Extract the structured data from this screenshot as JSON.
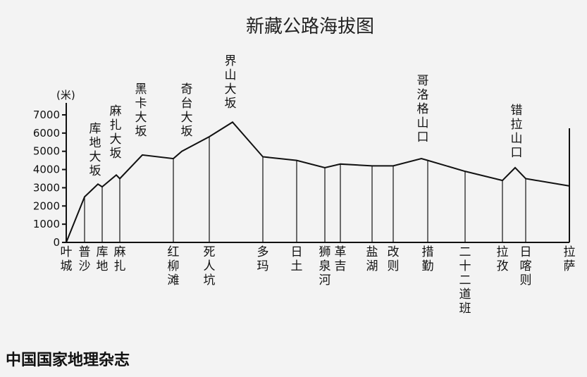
{
  "chart_data": {
    "type": "line",
    "title": "新藏公路海拔图",
    "source": "中国国家地理杂志",
    "y_unit": "(米)",
    "ylim": [
      0,
      7000
    ],
    "yticks": [
      0,
      1000,
      2000,
      3000,
      4000,
      5000,
      6000,
      7000
    ],
    "grid": false,
    "places": [
      {
        "name": "叶城",
        "elev": 0
      },
      {
        "name": "普沙",
        "elev": 2500
      },
      {
        "name": "库地",
        "elev": 3050
      },
      {
        "name": "麻扎",
        "elev": 3500
      },
      {
        "name": "红柳滩",
        "elev": 4600
      },
      {
        "name": "死人坑",
        "elev": 5800
      },
      {
        "name": "多玛",
        "elev": 4700
      },
      {
        "name": "日土",
        "elev": 4500
      },
      {
        "name": "狮泉河",
        "elev": 4100
      },
      {
        "name": "革吉",
        "elev": 4300
      },
      {
        "name": "盐湖",
        "elev": 4200
      },
      {
        "name": "改则",
        "elev": 4200
      },
      {
        "name": "措勤",
        "elev": 4500
      },
      {
        "name": "二十二道班",
        "elev": 3900
      },
      {
        "name": "拉孜",
        "elev": 3400
      },
      {
        "name": "日喀则",
        "elev": 3500
      },
      {
        "name": "拉萨",
        "elev": 3100
      }
    ],
    "passes": [
      {
        "name": "库地大坂",
        "elev": 3200
      },
      {
        "name": "麻扎大坂",
        "elev": 3700
      },
      {
        "name": "黑卡大坂",
        "elev": 4800
      },
      {
        "name": "奇台大坂",
        "elev": 5000
      },
      {
        "name": "界山大坂",
        "elev": 6600
      },
      {
        "name": "哥洛格山口",
        "elev": 4600
      },
      {
        "name": "错拉山口",
        "elev": 4100
      }
    ]
  }
}
